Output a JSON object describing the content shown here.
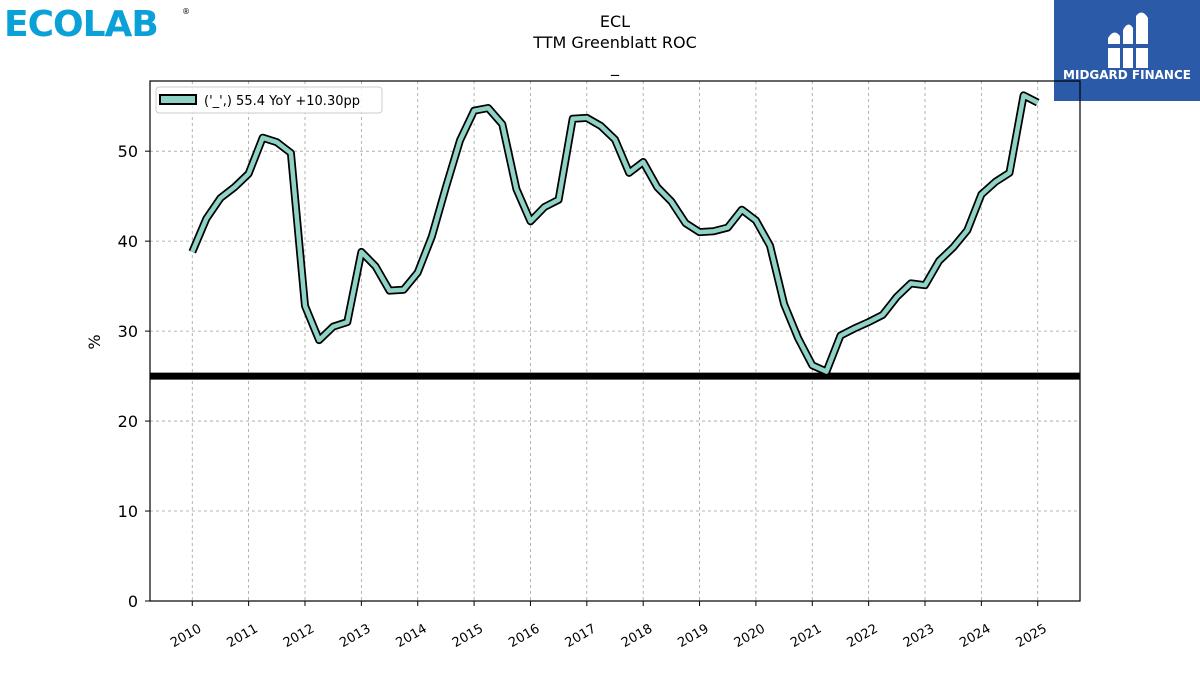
{
  "branding": {
    "left_logo_text": "ECOLAB",
    "right_logo_text": "MIDGARD FINANCE",
    "left_logo_color": "#0aa0d8",
    "right_logo_bg": "#2b5aa8"
  },
  "chart_data": {
    "type": "line",
    "title_lines": [
      "ECL",
      "TTM Greenblatt ROC",
      "_"
    ],
    "ylabel": "%",
    "xlabel": "",
    "ylim": [
      0,
      57.8
    ],
    "xlim": [
      2009.25,
      2025.75
    ],
    "yticks": [
      0,
      10,
      20,
      30,
      40,
      50
    ],
    "xticks": [
      2010,
      2011,
      2012,
      2013,
      2014,
      2015,
      2016,
      2017,
      2018,
      2019,
      2020,
      2021,
      2022,
      2023,
      2024,
      2025
    ],
    "grid": true,
    "legend_position": "top-left",
    "reference_line": {
      "y": 25,
      "color": "#000000"
    },
    "series": [
      {
        "name": "('_',) 55.4 YoY +10.30pp",
        "color": "#8fd3c6",
        "edge_color": "#000000",
        "x": [
          2010.0,
          2010.25,
          2010.5,
          2010.75,
          2011.0,
          2011.25,
          2011.5,
          2011.75,
          2012.0,
          2012.25,
          2012.5,
          2012.75,
          2013.0,
          2013.25,
          2013.5,
          2013.75,
          2014.0,
          2014.25,
          2014.5,
          2014.75,
          2015.0,
          2015.25,
          2015.5,
          2015.75,
          2016.0,
          2016.25,
          2016.5,
          2016.75,
          2017.0,
          2017.25,
          2017.5,
          2017.75,
          2018.0,
          2018.25,
          2018.5,
          2018.75,
          2019.0,
          2019.25,
          2019.5,
          2019.75,
          2020.0,
          2020.25,
          2020.5,
          2020.75,
          2021.0,
          2021.25,
          2021.5,
          2021.75,
          2022.0,
          2022.25,
          2022.5,
          2022.75,
          2023.0,
          2023.25,
          2023.5,
          2023.75,
          2024.0,
          2024.25,
          2024.5,
          2024.75,
          2025.0
        ],
        "values": [
          38.8,
          42.5,
          44.8,
          46.0,
          47.5,
          51.5,
          51.0,
          49.8,
          32.8,
          29.0,
          30.5,
          31.0,
          38.8,
          37.2,
          34.5,
          34.6,
          36.5,
          40.5,
          46.0,
          51.2,
          54.5,
          54.8,
          53.0,
          45.8,
          42.2,
          43.8,
          44.6,
          53.6,
          53.7,
          52.8,
          51.3,
          47.6,
          48.8,
          46.0,
          44.4,
          42.0,
          41.0,
          41.1,
          41.5,
          43.5,
          42.3,
          39.5,
          33.0,
          29.2,
          26.2,
          25.5,
          29.5,
          30.3,
          31.0,
          31.8,
          33.8,
          35.3,
          35.1,
          37.8,
          39.3,
          41.2,
          45.2,
          46.6,
          47.6,
          56.2,
          55.4
        ]
      }
    ]
  }
}
